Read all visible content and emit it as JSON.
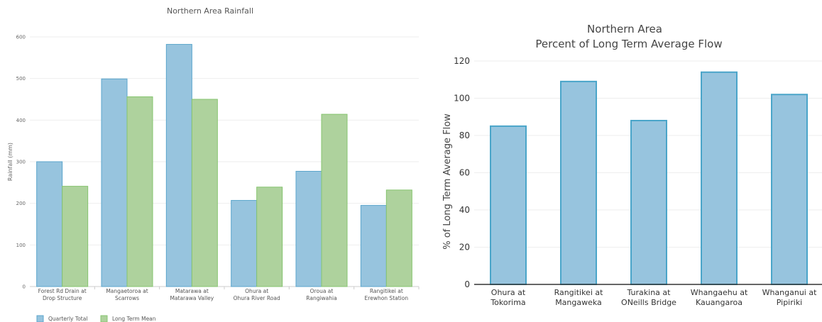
{
  "colors": {
    "quarterly_fill": "#97c4de",
    "quarterly_stroke": "#5ba6cc",
    "mean_fill": "#aed29d",
    "mean_stroke": "#86c46f",
    "flow_fill": "#97c4de",
    "flow_stroke": "#4aa5c9",
    "axis_text": "#555555",
    "grid": "#eeeeee"
  },
  "chart_data": [
    {
      "type": "bar",
      "title": "Northern Area Rainfall",
      "ylabel": "Rainfall (mm)",
      "xlabel": "",
      "ylim": [
        0,
        600
      ],
      "yticks": [
        0,
        100,
        200,
        300,
        400,
        500,
        600
      ],
      "grid": true,
      "legend_position": "bottom-left",
      "categories": [
        [
          "Forest Rd Drain at",
          "Drop Structure"
        ],
        [
          "Mangaetoroa at",
          "Scarrows"
        ],
        [
          "Matarawa at",
          "Matarawa Valley"
        ],
        [
          "Ohura at",
          "Ohura River Road"
        ],
        [
          "Oroua at",
          "Rangiwahia"
        ],
        [
          "Rangitikei at",
          "Erewhon Station"
        ]
      ],
      "series": [
        {
          "name": "Quarterly Total",
          "values": [
            300,
            499,
            582,
            207,
            277,
            195
          ]
        },
        {
          "name": "Long Term Mean",
          "values": [
            241,
            456,
            450,
            239,
            414,
            232
          ]
        }
      ]
    },
    {
      "type": "bar",
      "title": [
        "Northern Area",
        "Percent of Long Term Average Flow"
      ],
      "ylabel": "% of Long Term Average Flow",
      "xlabel": "",
      "ylim": [
        0,
        120
      ],
      "yticks": [
        0,
        20,
        40,
        60,
        80,
        100,
        120
      ],
      "grid": true,
      "categories": [
        [
          "Ohura at",
          "Tokorima"
        ],
        [
          "Rangitikei at",
          "Mangaweka"
        ],
        [
          "Turakina at",
          "ONeills Bridge"
        ],
        [
          "Whangaehu at",
          "Kauangaroa"
        ],
        [
          "Whanganui at",
          "Pipiriki"
        ]
      ],
      "values": [
        85,
        109,
        88,
        114,
        102
      ]
    }
  ]
}
